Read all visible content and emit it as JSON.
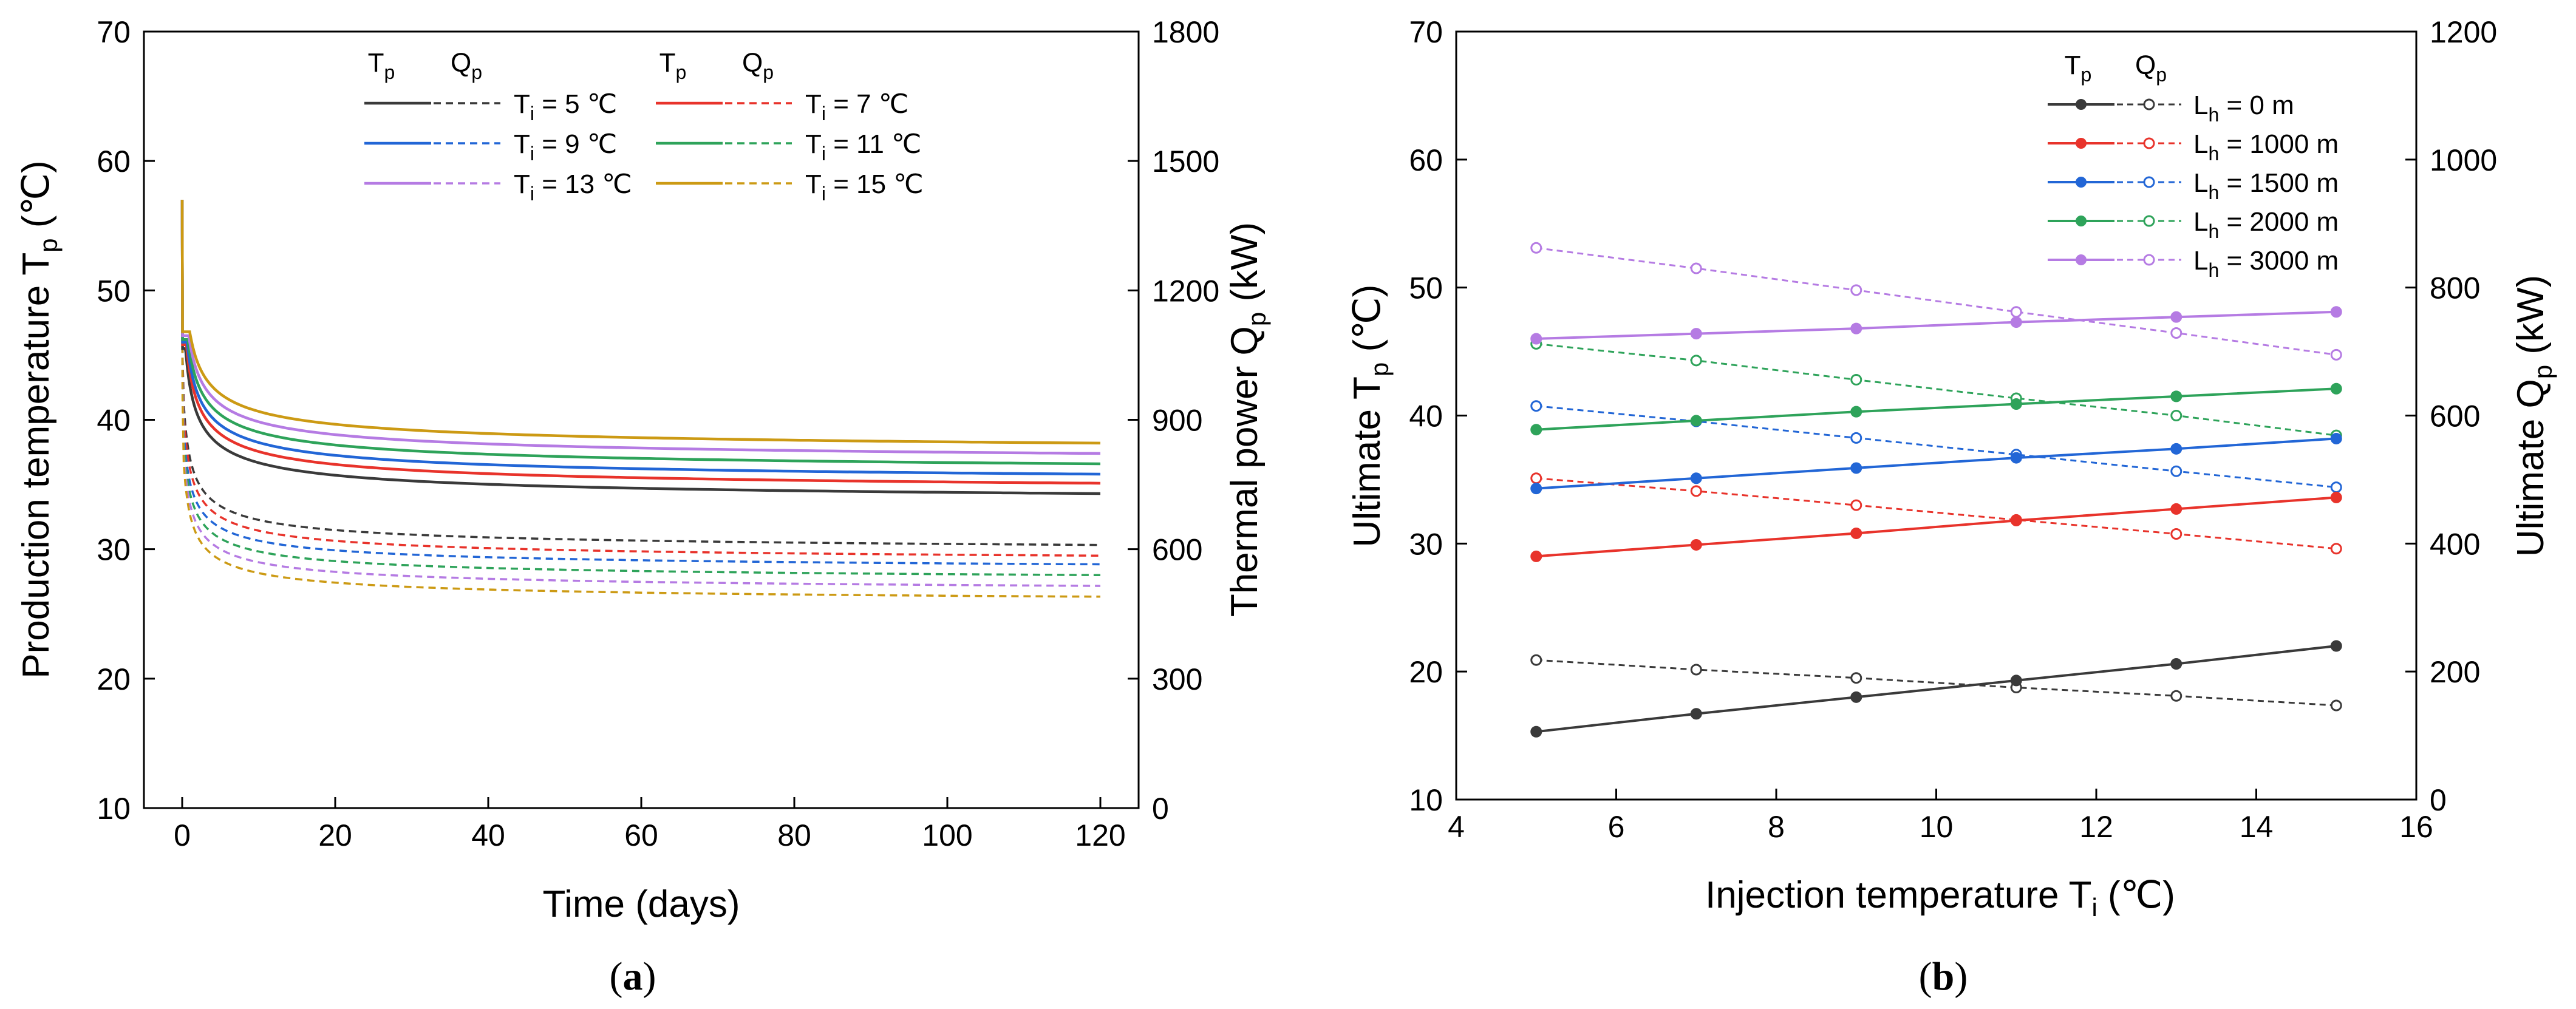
{
  "chart_data": [
    {
      "panel": "(a)",
      "panel_letter": "a",
      "type": "line",
      "xlabel": "Time (days)",
      "ylabel_left": "Production temperature T",
      "ylabel_left_sub": "p",
      "ylabel_left_unit": " (℃)",
      "ylabel_right": "Thermal power Q",
      "ylabel_right_sub": "p",
      "ylabel_right_unit": " (kW)",
      "xlim": [
        -5,
        125
      ],
      "ylim_left": [
        10,
        70
      ],
      "ylim_right": [
        0,
        1800
      ],
      "xticks": [
        0,
        20,
        40,
        60,
        80,
        100,
        120
      ],
      "yticks_left": [
        10,
        20,
        30,
        40,
        50,
        60,
        70
      ],
      "yticks_right": [
        0,
        300,
        600,
        900,
        1200,
        1500,
        1800
      ],
      "legend": {
        "col1": "T",
        "col1_sub": "p",
        "col2": "Q",
        "col2_sub": "p",
        "entries": [
          {
            "prefix": "T",
            "sub": "i",
            "text": " = 5 ℃",
            "color": "#3a3a3a"
          },
          {
            "prefix": "T",
            "sub": "i",
            "text": " = 7 ℃",
            "color": "#e8332b"
          },
          {
            "prefix": "T",
            "sub": "i",
            "text": " = 9 ℃",
            "color": "#2266d6"
          },
          {
            "prefix": "T",
            "sub": "i",
            "text": " = 11 ℃",
            "color": "#2ea35a"
          },
          {
            "prefix": "T",
            "sub": "i",
            "text": " = 13 ℃",
            "color": "#b57be3"
          },
          {
            "prefix": "T",
            "sub": "i",
            "text": " = 15 ℃",
            "color": "#cc9a14"
          }
        ]
      },
      "initial_Tp": 57,
      "series": [
        {
          "name": "Ti = 5",
          "color": "#3a3a3a",
          "Tp_peak": 45.5,
          "Tp_at_5": 38.0,
          "Tp_at_120": 34.3,
          "Qp_peak": 1050,
          "Qp_at_5": 700,
          "Qp_at_120": 610
        },
        {
          "name": "Ti = 7",
          "color": "#e8332b",
          "Tp_peak": 45.8,
          "Tp_at_5": 38.9,
          "Tp_at_120": 35.1,
          "Qp_peak": 1030,
          "Qp_at_5": 675,
          "Qp_at_120": 585
        },
        {
          "name": "Ti = 9",
          "color": "#2266d6",
          "Tp_peak": 46.0,
          "Tp_at_5": 39.6,
          "Tp_at_120": 35.8,
          "Qp_peak": 1010,
          "Qp_at_5": 650,
          "Qp_at_120": 565
        },
        {
          "name": "Ti = 11",
          "color": "#2ea35a",
          "Tp_peak": 46.2,
          "Tp_at_5": 40.4,
          "Tp_at_120": 36.6,
          "Qp_peak": 990,
          "Qp_at_5": 625,
          "Qp_at_120": 540
        },
        {
          "name": "Ti = 13",
          "color": "#b57be3",
          "Tp_peak": 46.5,
          "Tp_at_5": 41.2,
          "Tp_at_120": 37.4,
          "Qp_peak": 970,
          "Qp_at_5": 600,
          "Qp_at_120": 515
        },
        {
          "name": "Ti = 15",
          "color": "#cc9a14",
          "Tp_peak": 46.8,
          "Tp_at_5": 42.0,
          "Tp_at_120": 38.2,
          "Qp_peak": 950,
          "Qp_at_5": 575,
          "Qp_at_120": 490
        }
      ]
    },
    {
      "panel": "(b)",
      "panel_letter": "b",
      "type": "line",
      "xlabel": "Injection temperature T",
      "xlabel_sub": "i",
      "xlabel_unit": " (℃)",
      "ylabel_left": "Ultimate T",
      "ylabel_left_sub": "p",
      "ylabel_left_unit": " (℃)",
      "ylabel_right": "Ultimate Q",
      "ylabel_right_sub": "p",
      "ylabel_right_unit": " (kW)",
      "xlim": [
        4,
        16
      ],
      "ylim_left": [
        10,
        70
      ],
      "ylim_right": [
        0,
        1200
      ],
      "xticks": [
        4,
        6,
        8,
        10,
        12,
        14,
        16
      ],
      "yticks_left": [
        10,
        20,
        30,
        40,
        50,
        60,
        70
      ],
      "yticks_right": [
        0,
        200,
        400,
        600,
        800,
        1000,
        1200
      ],
      "x": [
        5,
        7,
        9,
        11,
        13,
        15
      ],
      "legend": {
        "col1": "T",
        "col1_sub": "p",
        "col2": "Q",
        "col2_sub": "p",
        "entries": [
          {
            "prefix": "L",
            "sub": "h",
            "text": " = 0 m",
            "color": "#3a3a3a"
          },
          {
            "prefix": "L",
            "sub": "h",
            "text": " = 1000 m",
            "color": "#e8332b"
          },
          {
            "prefix": "L",
            "sub": "h",
            "text": " = 1500 m",
            "color": "#2266d6"
          },
          {
            "prefix": "L",
            "sub": "h",
            "text": " = 2000 m",
            "color": "#2ea35a"
          },
          {
            "prefix": "L",
            "sub": "h",
            "text": " = 3000 m",
            "color": "#b57be3"
          }
        ]
      },
      "series": [
        {
          "name": "Lh = 0 m",
          "color": "#3a3a3a",
          "Tp": [
            15.3,
            16.7,
            18.0,
            19.3,
            20.6,
            22.0
          ],
          "Qp": [
            218,
            203,
            190,
            175,
            162,
            147
          ]
        },
        {
          "name": "Lh = 1000 m",
          "color": "#e8332b",
          "Tp": [
            29.0,
            29.9,
            30.8,
            31.8,
            32.7,
            33.6
          ],
          "Qp": [
            502,
            482,
            460,
            437,
            415,
            392
          ]
        },
        {
          "name": "Lh = 1500 m",
          "color": "#2266d6",
          "Tp": [
            34.3,
            35.1,
            35.9,
            36.7,
            37.4,
            38.2
          ],
          "Qp": [
            615,
            591,
            565,
            539,
            513,
            488
          ]
        },
        {
          "name": "Lh = 2000 m",
          "color": "#2ea35a",
          "Tp": [
            38.9,
            39.6,
            40.3,
            40.9,
            41.5,
            42.1
          ],
          "Qp": [
            712,
            686,
            656,
            627,
            600,
            569
          ]
        },
        {
          "name": "Lh = 3000 m",
          "color": "#b57be3",
          "Tp": [
            46.0,
            46.4,
            46.8,
            47.3,
            47.7,
            48.1
          ],
          "Qp": [
            862,
            830,
            796,
            762,
            729,
            695
          ]
        }
      ]
    }
  ]
}
